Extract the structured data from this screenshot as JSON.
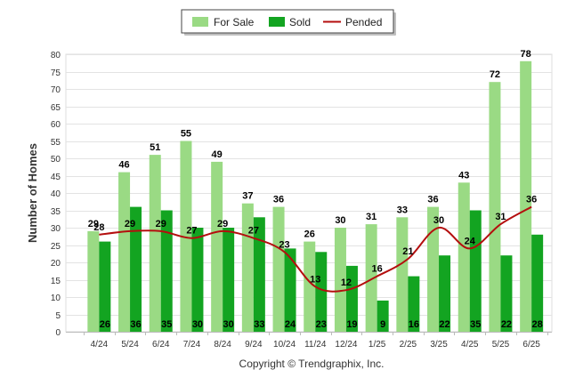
{
  "chart_data": {
    "type": "bar",
    "categories": [
      "4/24",
      "5/24",
      "6/24",
      "7/24",
      "8/24",
      "9/24",
      "10/24",
      "11/24",
      "12/24",
      "1/25",
      "2/25",
      "3/25",
      "4/25",
      "5/25",
      "6/25"
    ],
    "series": [
      {
        "name": "For Sale",
        "type": "bar",
        "color": "#9ada84",
        "values": [
          29,
          46,
          51,
          55,
          49,
          37,
          36,
          26,
          30,
          31,
          33,
          36,
          43,
          72,
          78
        ]
      },
      {
        "name": "Sold",
        "type": "bar",
        "color": "#13a421",
        "values": [
          26,
          36,
          35,
          30,
          30,
          33,
          24,
          23,
          19,
          9,
          16,
          22,
          35,
          22,
          28
        ]
      },
      {
        "name": "Pended",
        "type": "line",
        "color": "#b40e0e",
        "values": [
          28,
          29,
          29,
          27,
          29,
          27,
          23,
          13,
          12,
          16,
          21,
          30,
          24,
          31,
          36
        ]
      }
    ],
    "ylabel": "Number of Homes",
    "xlabel": "",
    "ylim": [
      0,
      80
    ],
    "yticks": [
      0,
      5,
      10,
      15,
      20,
      25,
      30,
      35,
      40,
      45,
      50,
      55,
      60,
      65,
      70,
      75,
      80
    ],
    "grid": true,
    "legend_position": "top-center"
  },
  "footer": {
    "copyright": "Copyright © Trendgraphix, Inc."
  }
}
